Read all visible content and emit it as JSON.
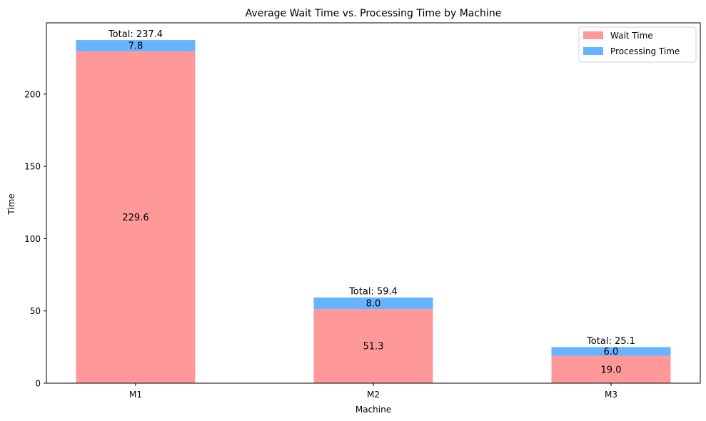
{
  "chart_data": {
    "type": "bar",
    "stacked": true,
    "title": "Average Wait Time vs. Processing Time by Machine",
    "xlabel": "Machine",
    "ylabel": "Time",
    "categories": [
      "M1",
      "M2",
      "M3"
    ],
    "series": [
      {
        "name": "Wait Time",
        "color": "#ff9999",
        "values": [
          229.6,
          51.3,
          19.0
        ],
        "labels": [
          "229.6",
          "51.3",
          "19.0"
        ]
      },
      {
        "name": "Processing Time",
        "color": "#66b3ff",
        "values": [
          7.8,
          8.0,
          6.0
        ],
        "labels": [
          "7.8",
          "8.0",
          "6.0"
        ]
      }
    ],
    "totals": [
      "Total: 237.4",
      "Total: 59.4",
      "Total: 25.1"
    ],
    "total_values": [
      237.4,
      59.4,
      25.1
    ],
    "ylim": [
      0,
      249.3
    ],
    "yticks": [
      0,
      50,
      100,
      150,
      200
    ],
    "grid": false,
    "legend_position": "top-right"
  }
}
